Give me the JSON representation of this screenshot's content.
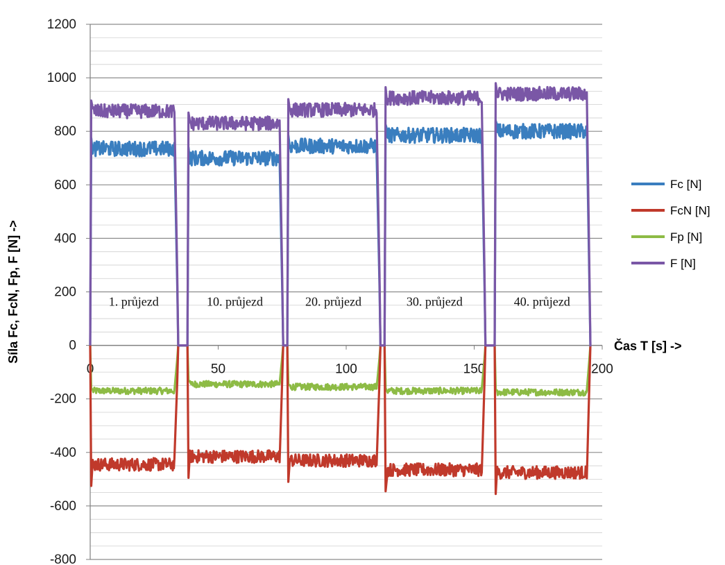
{
  "chart_data": {
    "type": "line",
    "title": "",
    "xlabel": "Čas T [s] ->",
    "ylabel": "Síla Fc, FcN, Fp, F [N] ->",
    "xlim": [
      0,
      200
    ],
    "ylim": [
      -800,
      1200
    ],
    "x_ticks": [
      "0",
      "50",
      "100",
      "150",
      "200"
    ],
    "y_ticks": [
      "1200",
      "1000",
      "800",
      "600",
      "400",
      "200",
      "0",
      "-200",
      "-400",
      "-600",
      "-800"
    ],
    "grid": true,
    "legend_position": "right",
    "annotations": [
      "1. průjezd",
      "10. průjezd",
      "20. průjezd",
      "30. průjezd",
      "40. průjezd"
    ],
    "passes": [
      {
        "x_start": 0,
        "x_end": 34
      },
      {
        "x_start": 38,
        "x_end": 75
      },
      {
        "x_start": 77,
        "x_end": 113
      },
      {
        "x_start": 115,
        "x_end": 154
      },
      {
        "x_start": 158,
        "x_end": 195
      }
    ],
    "series": [
      {
        "name": "Fc [N]",
        "color": "#3a7ebf",
        "levels": [
          735,
          700,
          745,
          785,
          800
        ]
      },
      {
        "name": "FcN [N]",
        "color": "#c0392b",
        "levels": [
          -445,
          -415,
          -430,
          -465,
          -475
        ]
      },
      {
        "name": "Fp [N]",
        "color": "#8dbb45",
        "levels": [
          -170,
          -145,
          -155,
          -170,
          -175
        ]
      },
      {
        "name": "F [N]",
        "color": "#7a57a6",
        "levels": [
          875,
          830,
          880,
          925,
          940
        ]
      }
    ]
  }
}
